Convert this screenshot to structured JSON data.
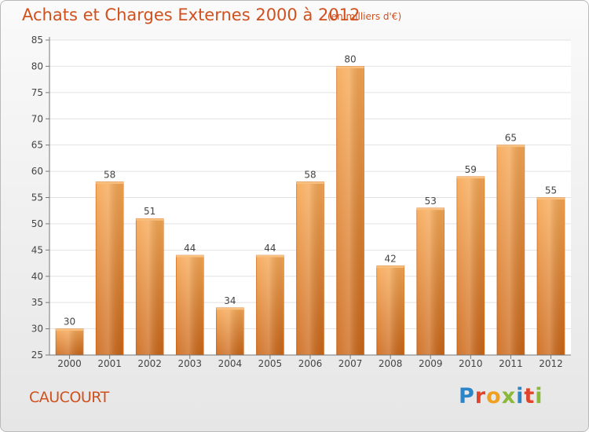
{
  "header": {
    "title": "Achats et Charges Externes 2000 à 2012",
    "subtitle": "(en milliers d'€)"
  },
  "footer": {
    "commune": "CAUCOURT",
    "logo_text": "Proxiti"
  },
  "colors": {
    "text_accent": "#d0501e",
    "bar_top": "#f7a854",
    "bar_bottom": "#cc6718",
    "grid": "#e2e2e2",
    "axis": "#777777"
  },
  "chart_data": {
    "type": "bar",
    "title": "Achats et Charges Externes 2000 à 2012",
    "subtitle": "(en milliers d'€)",
    "xlabel": "",
    "ylabel": "",
    "categories": [
      "2000",
      "2001",
      "2002",
      "2003",
      "2004",
      "2005",
      "2006",
      "2007",
      "2008",
      "2009",
      "2010",
      "2011",
      "2012"
    ],
    "values": [
      30,
      58,
      51,
      44,
      34,
      44,
      58,
      80,
      42,
      53,
      59,
      65,
      55
    ],
    "ylim": [
      25,
      85
    ],
    "yticks": [
      25,
      30,
      35,
      40,
      45,
      50,
      55,
      60,
      65,
      70,
      75,
      80,
      85
    ],
    "grid": true,
    "legend": "none",
    "data_labels": true
  }
}
